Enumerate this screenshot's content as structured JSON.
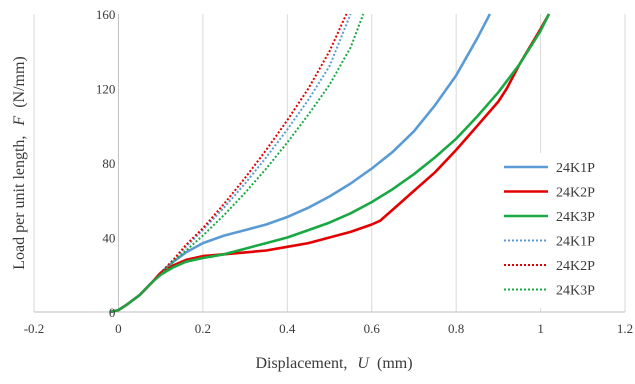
{
  "chart_data": {
    "type": "line",
    "xlabel_prefix": "Displacement,",
    "xlabel_symbol": "U",
    "xlabel_unit": "(mm)",
    "ylabel_prefix": "Load per unit length,",
    "ylabel_symbol": "F",
    "ylabel_unit": "(N/mm)",
    "xlim": [
      -0.2,
      1.2
    ],
    "ylim": [
      0,
      160
    ],
    "xticks": [
      -0.2,
      0,
      0.2,
      0.4,
      0.6,
      0.8,
      1,
      1.2
    ],
    "xtick_labels": [
      "-0.2",
      "0",
      "0.2",
      "0.4",
      "0.6",
      "0.8",
      "1",
      "1.2"
    ],
    "yticks": [
      0,
      40,
      80,
      120,
      160
    ],
    "ytick_labels": [
      "0",
      "40",
      "80",
      "120",
      "160"
    ],
    "grid": "vertical",
    "legend": "right",
    "series": [
      {
        "name": "24K1P",
        "color": "#5b9bd5",
        "dash": "solid",
        "x": [
          -0.02,
          0,
          0.02,
          0.05,
          0.08,
          0.1,
          0.13,
          0.16,
          0.2,
          0.25,
          0.3,
          0.35,
          0.4,
          0.45,
          0.5,
          0.55,
          0.6,
          0.65,
          0.7,
          0.75,
          0.8,
          0.85,
          0.88
        ],
        "y": [
          0,
          1,
          4,
          9,
          16,
          21,
          27,
          32,
          37,
          41,
          44,
          47,
          51,
          56,
          62,
          69,
          77,
          86,
          97,
          111,
          127,
          147,
          160
        ]
      },
      {
        "name": "24K2P",
        "color": "#e30000",
        "dash": "solid",
        "x": [
          -0.02,
          0,
          0.02,
          0.05,
          0.08,
          0.1,
          0.13,
          0.16,
          0.2,
          0.25,
          0.3,
          0.35,
          0.4,
          0.45,
          0.5,
          0.55,
          0.6,
          0.62,
          0.65,
          0.7,
          0.75,
          0.8,
          0.85,
          0.9,
          0.92,
          0.95,
          1.0,
          1.02
        ],
        "y": [
          0,
          1,
          4,
          9,
          16,
          21,
          25,
          28,
          30,
          31,
          32,
          33,
          35,
          37,
          40,
          43,
          47,
          49,
          55,
          65,
          75,
          87,
          100,
          113,
          120,
          133,
          152,
          160
        ]
      },
      {
        "name": "24K3P",
        "color": "#1aa843",
        "dash": "solid",
        "x": [
          -0.02,
          0,
          0.02,
          0.05,
          0.08,
          0.1,
          0.13,
          0.16,
          0.2,
          0.25,
          0.3,
          0.35,
          0.4,
          0.45,
          0.5,
          0.55,
          0.6,
          0.65,
          0.7,
          0.75,
          0.8,
          0.85,
          0.9,
          0.95,
          1.0,
          1.02
        ],
        "y": [
          0,
          1,
          4,
          9,
          16,
          20,
          24,
          27,
          29,
          31,
          34,
          37,
          40,
          44,
          48,
          53,
          59,
          66,
          74,
          83,
          93,
          105,
          118,
          133,
          151,
          160
        ]
      },
      {
        "name": "24K1P",
        "color": "#5b9bd5",
        "dash": "dotted",
        "x": [
          -0.02,
          0,
          0.02,
          0.05,
          0.08,
          0.1,
          0.13,
          0.16,
          0.2,
          0.25,
          0.3,
          0.35,
          0.4,
          0.45,
          0.5,
          0.55
        ],
        "y": [
          0,
          1,
          4,
          9,
          16,
          21,
          28,
          35,
          44,
          56,
          69,
          83,
          98,
          114,
          132,
          160
        ]
      },
      {
        "name": "24K2P",
        "color": "#e30000",
        "dash": "dotted",
        "x": [
          -0.02,
          0,
          0.02,
          0.05,
          0.08,
          0.1,
          0.13,
          0.16,
          0.2,
          0.25,
          0.3,
          0.35,
          0.4,
          0.45,
          0.5,
          0.54
        ],
        "y": [
          0,
          1,
          4,
          9,
          16,
          21,
          28,
          36,
          45,
          58,
          72,
          87,
          103,
          120,
          140,
          160
        ]
      },
      {
        "name": "24K3P",
        "color": "#1aa843",
        "dash": "dotted",
        "x": [
          -0.02,
          0,
          0.02,
          0.05,
          0.08,
          0.1,
          0.13,
          0.16,
          0.2,
          0.25,
          0.3,
          0.35,
          0.4,
          0.45,
          0.5,
          0.55,
          0.58
        ],
        "y": [
          0,
          1,
          4,
          9,
          16,
          20,
          27,
          33,
          41,
          52,
          64,
          77,
          91,
          106,
          122,
          142,
          160
        ]
      }
    ]
  }
}
